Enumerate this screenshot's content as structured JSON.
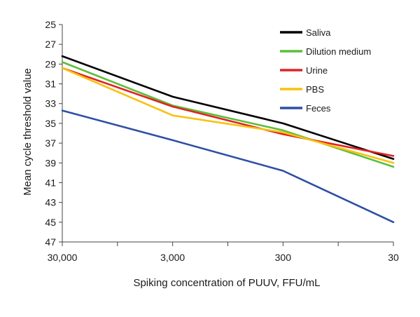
{
  "chart_data": {
    "type": "line",
    "title": "",
    "xlabel": "Spiking concentration of PUUV, FFU/mL",
    "ylabel": "Mean cycle threshold value",
    "categories": [
      "30,000",
      "3,000",
      "300",
      "30"
    ],
    "ylim": [
      25,
      47
    ],
    "y_inverted": true,
    "y_ticks": [
      "25",
      "27",
      "29",
      "31",
      "33",
      "35",
      "37",
      "39",
      "41",
      "43",
      "45",
      "47"
    ],
    "grid": false,
    "legend_position": "top-right",
    "series": [
      {
        "name": "Saliva",
        "color": "#000000",
        "values": [
          28.2,
          32.3,
          35.0,
          38.6
        ]
      },
      {
        "name": "Dilution medium",
        "color": "#5cbf3a",
        "values": [
          28.8,
          33.2,
          35.7,
          39.4
        ]
      },
      {
        "name": "Urine",
        "color": "#e32222",
        "values": [
          29.4,
          33.3,
          36.1,
          38.3
        ]
      },
      {
        "name": "PBS",
        "color": "#f7c20e",
        "values": [
          29.4,
          34.2,
          35.9,
          39.0
        ]
      },
      {
        "name": "Feces",
        "color": "#2e4fa3",
        "values": [
          33.7,
          36.7,
          39.8,
          45.0
        ]
      }
    ]
  }
}
